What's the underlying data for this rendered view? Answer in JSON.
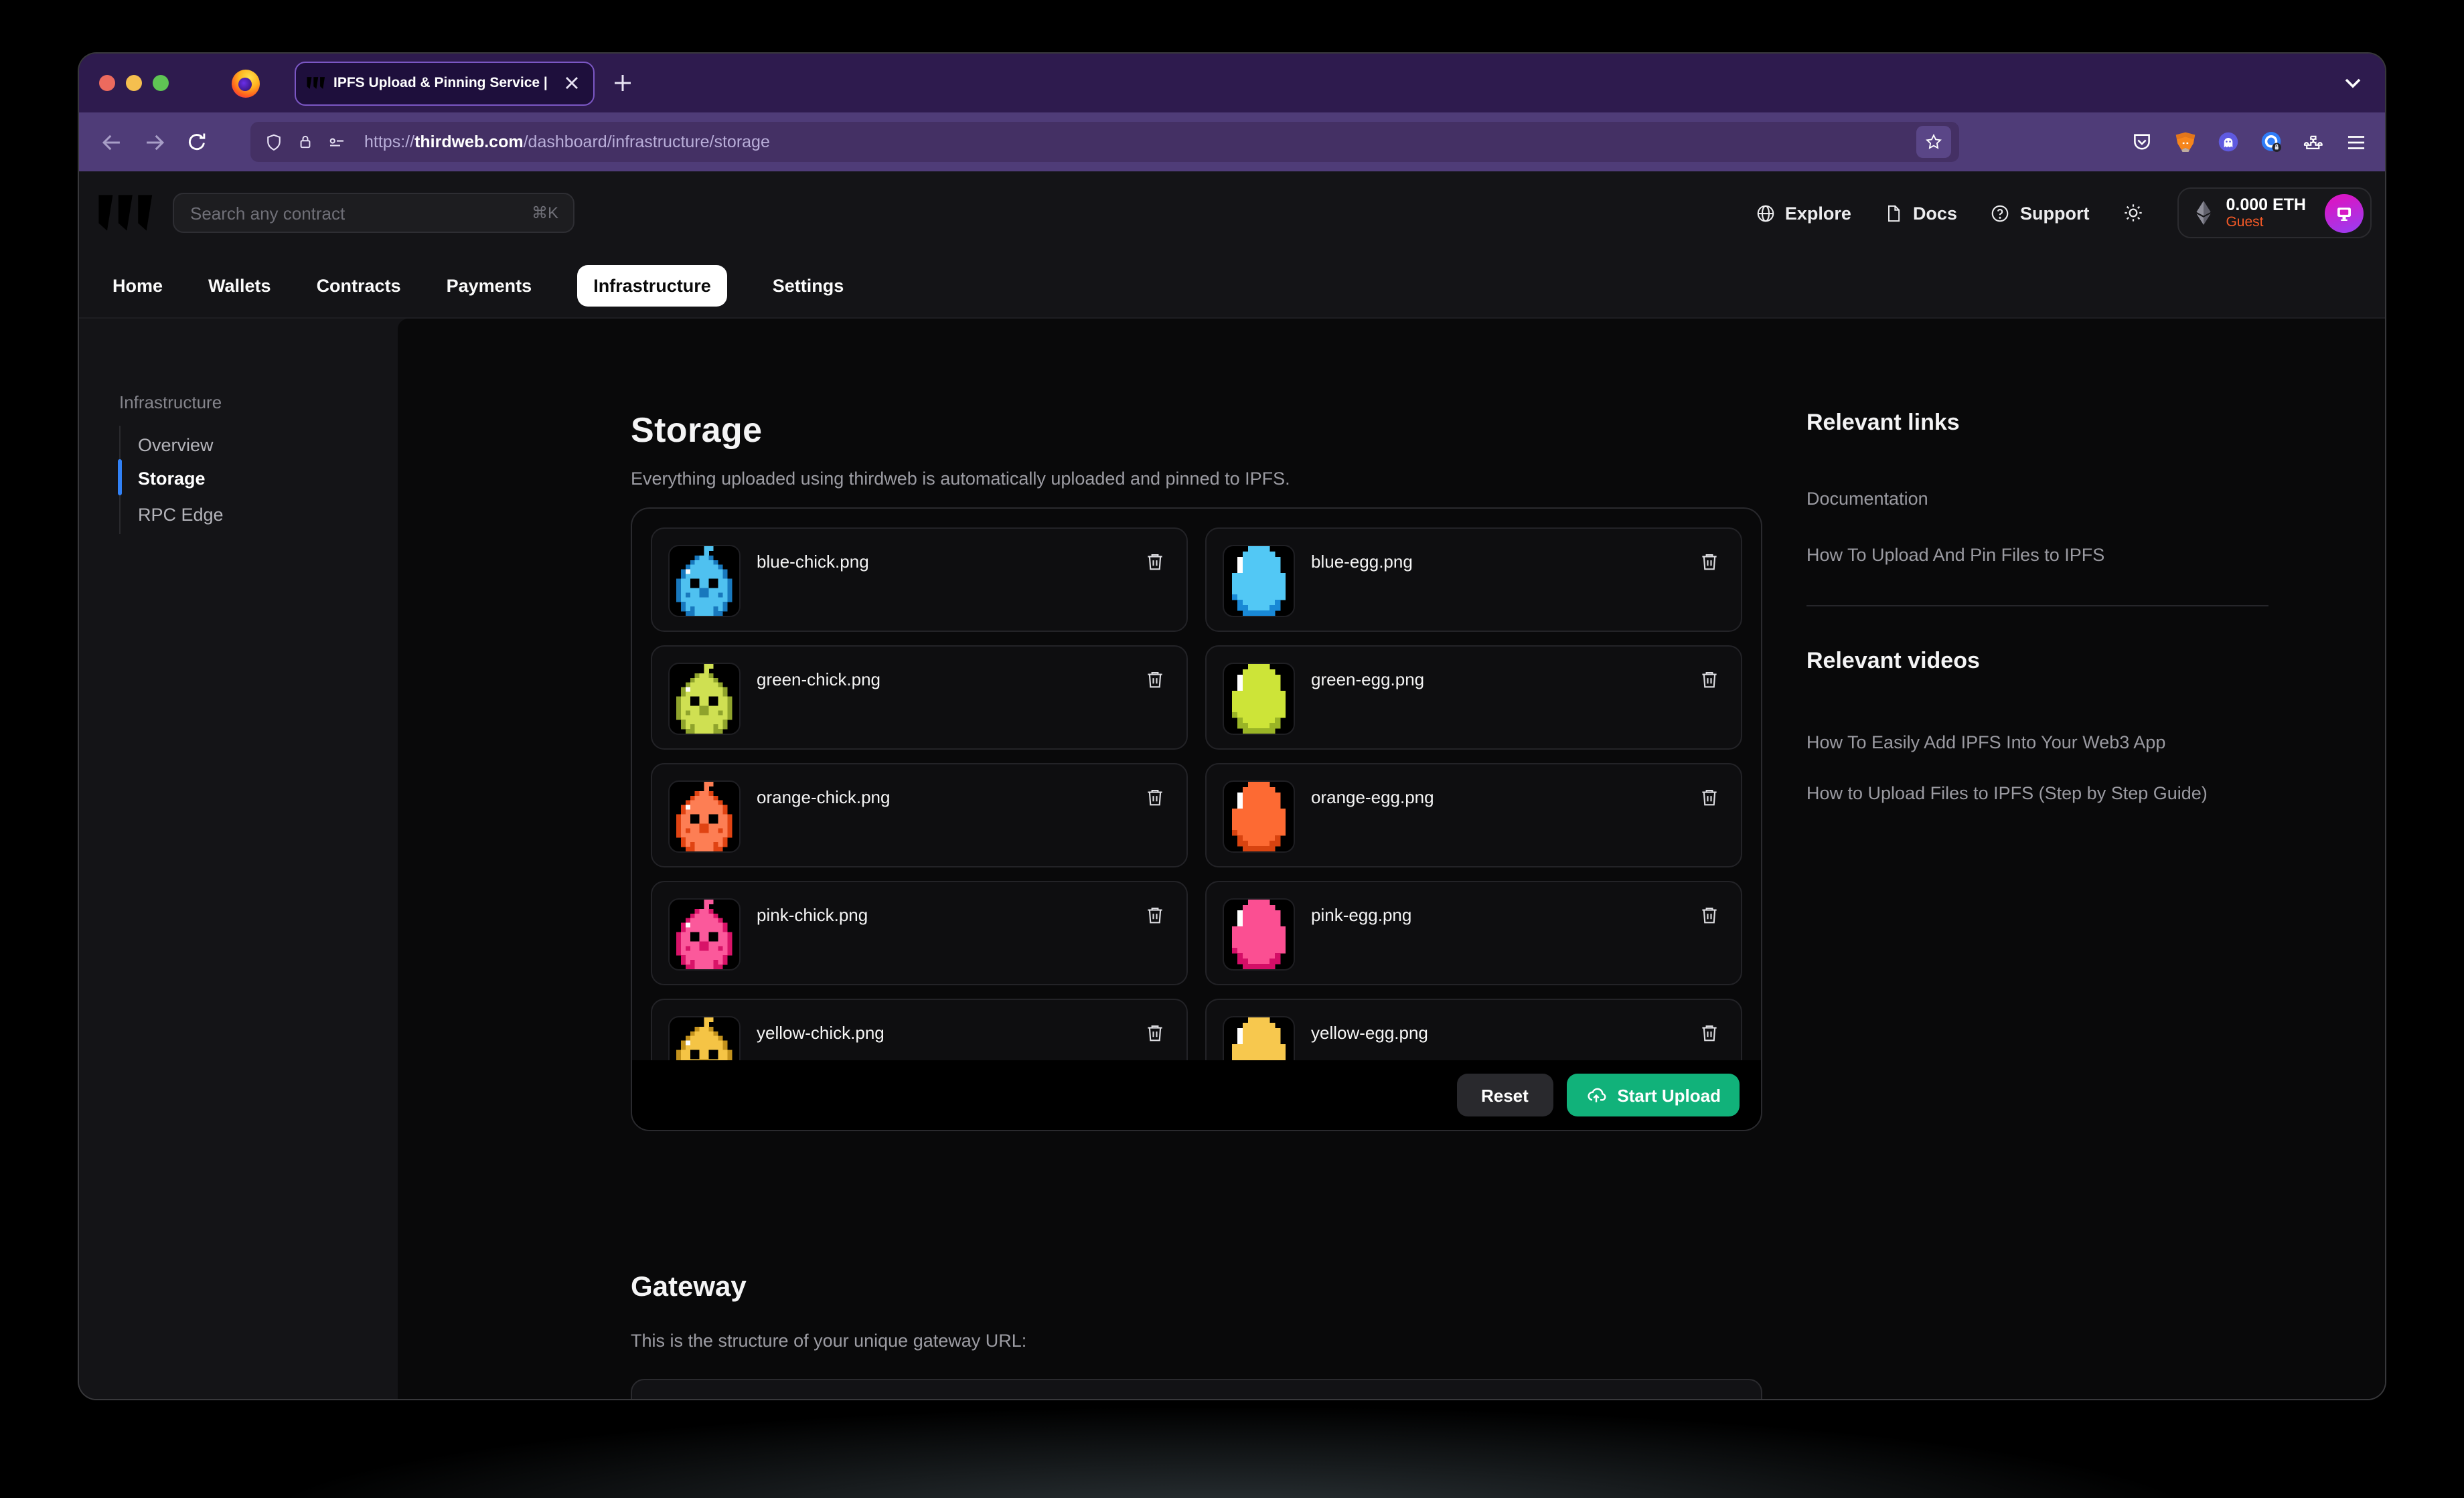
{
  "colors": {
    "accent-green": "#11b27a",
    "accent-blue": "#3181f6",
    "guest-orange": "#f65a27",
    "brand-magenta": "#d618c6",
    "brand-purple": "#9a3df1"
  },
  "browser": {
    "tab": {
      "title": "IPFS Upload & Pinning Service |"
    },
    "url": {
      "scheme": "https://",
      "domain": "thirdweb.com",
      "path": "/dashboard/infrastructure/storage"
    }
  },
  "header": {
    "search_placeholder": "Search any contract",
    "search_shortcut": "⌘K",
    "links": [
      "Explore",
      "Docs",
      "Support"
    ],
    "wallet": {
      "balance": "0.000 ETH",
      "network": "Guest"
    }
  },
  "app_tabs": [
    "Home",
    "Wallets",
    "Contracts",
    "Payments",
    "Infrastructure",
    "Settings"
  ],
  "sidebar": {
    "section": "Infrastructure",
    "items": [
      "Overview",
      "Storage",
      "RPC Edge"
    ],
    "active": "Storage"
  },
  "storage": {
    "title": "Storage",
    "description": "Everything uploaded using thirdweb is automatically uploaded and pinned to IPFS.",
    "reset_label": "Reset",
    "upload_label": "Start Upload",
    "files": [
      {
        "name": "blue-chick.png",
        "kind": "chick",
        "colors": {
          "main": "#4fc1f0",
          "dark": "#1878bd"
        }
      },
      {
        "name": "blue-egg.png",
        "kind": "egg",
        "colors": {
          "main": "#52c8f5",
          "dark": "#1989d6"
        }
      },
      {
        "name": "green-chick.png",
        "kind": "chick",
        "colors": {
          "main": "#cfe052",
          "dark": "#8fa32c"
        }
      },
      {
        "name": "green-egg.png",
        "kind": "egg",
        "colors": {
          "main": "#cde438",
          "dark": "#9ab426"
        }
      },
      {
        "name": "orange-chick.png",
        "kind": "chick",
        "colors": {
          "main": "#fd7e54",
          "dark": "#e04312"
        }
      },
      {
        "name": "orange-egg.png",
        "kind": "egg",
        "colors": {
          "main": "#fd6a33",
          "dark": "#d84310"
        }
      },
      {
        "name": "pink-chick.png",
        "kind": "chick",
        "colors": {
          "main": "#fb599b",
          "dark": "#d81368"
        }
      },
      {
        "name": "pink-egg.png",
        "kind": "egg",
        "colors": {
          "main": "#fb4f92",
          "dark": "#d40e67"
        }
      },
      {
        "name": "yellow-chick.png",
        "kind": "chick",
        "colors": {
          "main": "#f5c445",
          "dark": "#c2911c"
        }
      },
      {
        "name": "yellow-egg.png",
        "kind": "egg",
        "colors": {
          "main": "#f7c84e",
          "dark": "#cf9e22"
        }
      }
    ]
  },
  "gateway": {
    "title": "Gateway",
    "description": "This is the structure of your unique gateway URL:"
  },
  "aside": {
    "links_title": "Relevant links",
    "links": [
      "Documentation",
      "How To Upload And Pin Files to IPFS"
    ],
    "videos_title": "Relevant videos",
    "videos": [
      "How To Easily Add IPFS Into Your Web3 App",
      "How to Upload Files to IPFS (Step by Step Guide)"
    ]
  }
}
